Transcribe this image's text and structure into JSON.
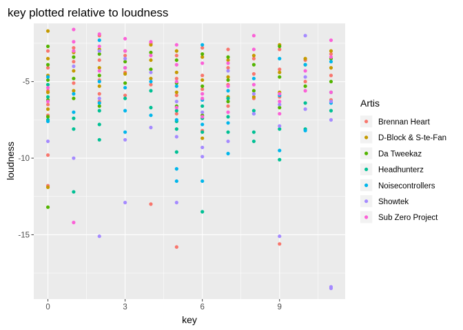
{
  "chart_data": {
    "type": "scatter",
    "title": "key plotted relative to loudness",
    "xlabel": "key",
    "ylabel": "loudness",
    "xlim": [
      -0.55,
      11.55
    ],
    "ylim": [
      -19.2,
      -1.2
    ],
    "x_ticks": [
      0,
      3,
      6,
      9
    ],
    "y_ticks": [
      -15,
      -10,
      -5
    ],
    "grid": true,
    "legend_position": "right",
    "legend_title": "Artis",
    "series": [
      {
        "name": "Brennan Heart",
        "color": "#F8766D",
        "x": [
          0,
          0,
          0,
          0,
          0,
          0,
          0,
          1,
          1,
          1,
          2,
          2,
          2,
          2,
          2,
          3,
          3,
          3,
          4,
          4,
          4,
          5,
          5,
          5,
          5,
          5,
          6,
          6,
          6,
          6,
          7,
          7,
          7,
          7,
          8,
          8,
          8,
          9,
          9,
          9,
          9,
          10,
          10,
          11,
          11,
          11
        ],
        "y": [
          -9.8,
          -11.8,
          -3.0,
          -4.1,
          -5.6,
          -6.5,
          -7.2,
          -2.8,
          -3.7,
          -5.1,
          -2.0,
          -3.6,
          -4.9,
          -5.8,
          -6.3,
          -3.3,
          -4.4,
          -5.9,
          -2.5,
          -5.2,
          -13.0,
          -15.8,
          -3.3,
          -4.8,
          -5.9,
          -7.1,
          -2.8,
          -4.6,
          -5.5,
          -8.2,
          -2.9,
          -4.1,
          -5.2,
          -6.6,
          -3.5,
          -4.5,
          -6.1,
          -15.6,
          -2.9,
          -4.2,
          -6.0,
          -3.6,
          -5.0,
          -3.2,
          -4.6,
          -6.2
        ]
      },
      {
        "name": "D-Block & S-te-Fan",
        "color": "#C49A00",
        "x": [
          0,
          0,
          0,
          0,
          0,
          0,
          1,
          1,
          1,
          2,
          2,
          2,
          3,
          3,
          4,
          4,
          4,
          5,
          5,
          5,
          6,
          6,
          6,
          7,
          7,
          7,
          8,
          8,
          9,
          9,
          9,
          10,
          11,
          11
        ],
        "y": [
          -1.7,
          -11.9,
          -3.5,
          -4.6,
          -5.7,
          -6.8,
          -3.1,
          -4.3,
          -5.6,
          -2.9,
          -4.1,
          -5.3,
          -3.0,
          -4.5,
          -2.6,
          -3.6,
          -4.8,
          -3.0,
          -4.4,
          -5.7,
          -3.4,
          -4.9,
          -8.7,
          -3.6,
          -4.7,
          -6.0,
          -3.3,
          -6.0,
          -2.6,
          -4.4,
          -5.7,
          -3.5,
          -3.0,
          -4.1
        ]
      },
      {
        "name": "Da Tweekaz",
        "color": "#53B400",
        "x": [
          0,
          0,
          0,
          0,
          0,
          0,
          1,
          1,
          1,
          2,
          2,
          2,
          3,
          3,
          4,
          4,
          5,
          5,
          5,
          6,
          6,
          6,
          7,
          7,
          7,
          8,
          8,
          9,
          9,
          9,
          10,
          10,
          11,
          11
        ],
        "y": [
          -13.2,
          -2.7,
          -3.9,
          -4.9,
          -6.2,
          -7.3,
          -3.4,
          -4.8,
          -6.1,
          -3.2,
          -4.6,
          -6.6,
          -3.7,
          -5.1,
          -3.1,
          -4.2,
          -3.6,
          -5.1,
          -6.6,
          -3.2,
          -5.3,
          -7.2,
          -3.4,
          -4.9,
          -6.3,
          -3.9,
          -5.6,
          -2.7,
          -4.7,
          -6.7,
          -3.9,
          -5.3,
          -3.5,
          -5.0
        ]
      },
      {
        "name": "Headhunterz",
        "color": "#00C094",
        "x": [
          0,
          0,
          0,
          1,
          1,
          1,
          2,
          2,
          2,
          3,
          3,
          4,
          4,
          5,
          5,
          5,
          5,
          6,
          6,
          6,
          6,
          7,
          7,
          7,
          8,
          8,
          8,
          9,
          9,
          10,
          10,
          11,
          11
        ],
        "y": [
          -5.2,
          -6.0,
          -7.5,
          -12.2,
          -7.4,
          -8.1,
          -8.8,
          -7.8,
          -6.9,
          -6.1,
          -4.1,
          -5.6,
          -6.7,
          -9.6,
          -6.9,
          -7.6,
          -8.1,
          -13.5,
          -7.4,
          -8.3,
          -6.6,
          -8.3,
          -6.1,
          -7.3,
          -8.9,
          -6.9,
          -8.3,
          -10.1,
          -8.1,
          -6.4,
          -8.1,
          -5.7,
          -6.9
        ]
      },
      {
        "name": "Noisecontrollers",
        "color": "#00B6EB",
        "x": [
          0,
          0,
          1,
          1,
          2,
          2,
          2,
          3,
          3,
          3,
          4,
          4,
          5,
          5,
          5,
          5,
          6,
          6,
          6,
          6,
          7,
          7,
          7,
          8,
          8,
          9,
          9,
          9,
          10,
          10,
          11,
          11
        ],
        "y": [
          -4.7,
          -7.6,
          -5.8,
          -7.0,
          -2.3,
          -5.0,
          -6.4,
          -5.4,
          -6.9,
          -8.3,
          -5.0,
          -7.2,
          -10.7,
          -11.5,
          -7.5,
          -5.3,
          -11.5,
          -2.6,
          -6.2,
          -7.8,
          -9.7,
          -5.6,
          -7.7,
          -4.8,
          -7.1,
          -9.5,
          -3.5,
          -5.9,
          -3.9,
          -8.2,
          -3.7,
          -6.4
        ]
      },
      {
        "name": "Showtek",
        "color": "#A58AFF",
        "x": [
          0,
          1,
          1,
          2,
          2,
          2,
          3,
          3,
          3,
          4,
          4,
          5,
          5,
          5,
          6,
          6,
          6,
          7,
          7,
          8,
          8,
          9,
          9,
          9,
          10,
          10,
          10,
          11,
          11,
          11,
          11
        ],
        "y": [
          -8.9,
          -10.0,
          -4.0,
          -15.1,
          -3.0,
          -6.1,
          -12.9,
          -8.8,
          -3.5,
          -8.0,
          -4.4,
          -12.9,
          -6.3,
          -8.6,
          -9.3,
          -9.9,
          -7.0,
          -8.9,
          -4.3,
          -7.1,
          -5.8,
          -15.1,
          -6.5,
          -7.9,
          -2.0,
          -6.8,
          -4.7,
          -18.4,
          -18.5,
          -6.3,
          -7.5
        ]
      },
      {
        "name": "Sub Zero Project",
        "color": "#FB61D7",
        "x": [
          0,
          0,
          1,
          1,
          1,
          1,
          2,
          2,
          2,
          3,
          3,
          3,
          4,
          4,
          5,
          5,
          5,
          5,
          6,
          6,
          6,
          6,
          7,
          7,
          7,
          8,
          8,
          8,
          9,
          9,
          9,
          10,
          10,
          11,
          11,
          11
        ],
        "y": [
          -5.4,
          -6.3,
          -14.2,
          -1.6,
          -2.4,
          -3.0,
          -1.9,
          -2.7,
          -4.3,
          -2.2,
          -3.0,
          -4.1,
          -2.4,
          -3.3,
          -2.6,
          -3.9,
          -5.0,
          -6.7,
          -5.8,
          -6.1,
          -7.3,
          -3.8,
          -3.8,
          -5.3,
          -7.0,
          -2.0,
          -2.9,
          -5.2,
          -5.8,
          -6.3,
          -7.1,
          -4.3,
          -5.6,
          -2.3,
          -3.4,
          -5.7
        ]
      }
    ]
  }
}
